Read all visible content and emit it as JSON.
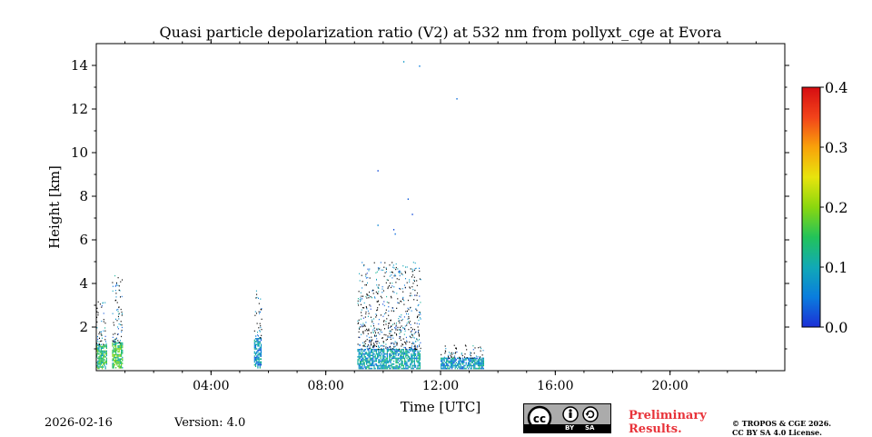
{
  "chart_data": {
    "type": "heatmap",
    "title": "Quasi particle depolarization ratio (V2) at 532 nm from pollyxt_cge at Evora",
    "xlabel": "Time [UTC]",
    "ylabel": "Height [km]",
    "xlim": [
      0,
      24
    ],
    "ylim": [
      0,
      15
    ],
    "xticks": [
      4,
      8,
      12,
      16,
      20
    ],
    "xtick_labels": [
      "04:00",
      "08:00",
      "12:00",
      "16:00",
      "20:00"
    ],
    "yticks": [
      2,
      4,
      6,
      8,
      10,
      12,
      14
    ],
    "ytick_labels": [
      "2",
      "4",
      "6",
      "8",
      "10",
      "12",
      "14"
    ],
    "colorbar": {
      "min": 0.0,
      "max": 0.4,
      "ticks": [
        0.0,
        0.1,
        0.2,
        0.3,
        0.4
      ],
      "tick_labels": [
        "0.0",
        "0.1",
        "0.2",
        "0.3",
        "0.4"
      ],
      "colormap": [
        "#1c2fd6",
        "#0a7dde",
        "#11a9b6",
        "#22c35a",
        "#8ad70f",
        "#e8e40d",
        "#f9a20a",
        "#f2431a",
        "#d60d12"
      ]
    },
    "clusters": [
      {
        "t_start": 0.0,
        "t_end": 0.35,
        "h_min": 0.1,
        "h_max": 1.2,
        "value": 0.14,
        "t_sparse_top": 3.2
      },
      {
        "t_start": 0.55,
        "t_end": 0.9,
        "h_min": 0.1,
        "h_max": 1.3,
        "value": 0.15,
        "t_sparse_top": 4.4
      },
      {
        "t_start": 5.5,
        "t_end": 5.75,
        "h_min": 0.1,
        "h_max": 1.5,
        "value": 0.08,
        "t_sparse_top": 3.7
      },
      {
        "t_start": 9.1,
        "t_end": 11.3,
        "h_min": 0.1,
        "h_max": 1.0,
        "value": 0.09,
        "t_sparse_top": 5.0
      },
      {
        "t_start": 12.0,
        "t_end": 13.5,
        "h_min": 0.1,
        "h_max": 0.6,
        "value": 0.08,
        "t_sparse_top": 1.2
      }
    ],
    "isolated_points": [
      {
        "t": 10.7,
        "h": 14.2,
        "value": 0.08
      },
      {
        "t": 11.25,
        "h": 14.0,
        "value": 0.05
      },
      {
        "t": 12.55,
        "h": 12.5,
        "value": 0.04
      },
      {
        "t": 9.8,
        "h": 9.2,
        "value": 0.02
      },
      {
        "t": 10.85,
        "h": 7.9,
        "value": 0.03
      },
      {
        "t": 11.0,
        "h": 7.2,
        "value": 0.02
      },
      {
        "t": 9.8,
        "h": 6.7,
        "value": 0.06
      },
      {
        "t": 10.35,
        "h": 6.5,
        "value": 0.02
      },
      {
        "t": 10.4,
        "h": 6.3,
        "value": 0.04
      },
      {
        "t": 10.55,
        "h": 4.6,
        "value": 0.03
      }
    ]
  },
  "footer": {
    "date": "2026-02-16",
    "version": "Version: 4.0",
    "preliminary_line1": "Preliminary",
    "preliminary_line2": "Results.",
    "copyright_line1": "© TROPOS & CGE 2026.",
    "copyright_line2": "CC BY SA 4.0 License.",
    "cc_label": "cc",
    "cc_by": "BY",
    "cc_sa": "SA"
  }
}
